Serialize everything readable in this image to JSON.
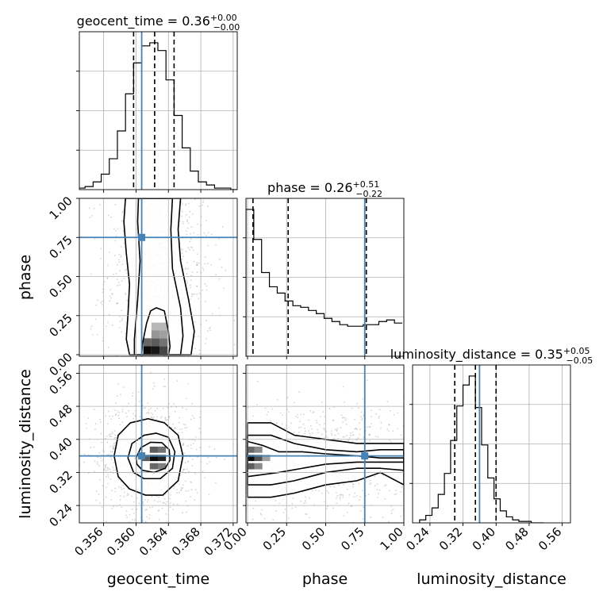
{
  "chart_data": {
    "type": "corner",
    "colors": {
      "truth": "#4682b4",
      "hist": "#000000",
      "grid": "#b0b0b0",
      "points": "#a0a0a0"
    },
    "parameters": [
      {
        "key": "geocent_time",
        "label": "geocent_time",
        "title_main": "geocent_time = 0.36",
        "title_sup": "+0.00",
        "title_sub": "−0.00",
        "range": [
          0.353,
          0.3725
        ],
        "ticks": [
          0.356,
          0.36,
          0.364,
          0.368,
          0.372
        ],
        "tick_labels": [
          "0.356",
          "0.360",
          "0.364",
          "0.368",
          "0.372"
        ],
        "truth": 0.3607,
        "quantiles": [
          0.3597,
          0.3623,
          0.3647
        ],
        "hist_x0": 0.3527,
        "hist_dx": 0.001,
        "hist": [
          0.01,
          0.02,
          0.05,
          0.1,
          0.2,
          0.38,
          0.62,
          0.82,
          0.93,
          0.95,
          0.9,
          0.71,
          0.48,
          0.27,
          0.12,
          0.05,
          0.03,
          0.01,
          0.01,
          0.0
        ]
      },
      {
        "key": "phase",
        "label": "phase",
        "title_main": "phase = 0.26",
        "title_sup": "+0.51",
        "title_sub": "−0.22",
        "range": [
          -0.01,
          1.0
        ],
        "ticks": [
          0.0,
          0.25,
          0.5,
          0.75,
          1.0
        ],
        "tick_labels": [
          "0.00",
          "0.25",
          "0.50",
          "0.75",
          "1.00"
        ],
        "truth": 0.75,
        "quantiles": [
          0.035,
          0.26,
          0.76
        ],
        "hist_x0": -0.01,
        "hist_dx": 0.05,
        "hist": [
          0.93,
          0.74,
          0.53,
          0.44,
          0.4,
          0.35,
          0.32,
          0.31,
          0.29,
          0.27,
          0.24,
          0.22,
          0.2,
          0.19,
          0.19,
          0.2,
          0.2,
          0.22,
          0.23,
          0.21
        ]
      },
      {
        "key": "luminosity_distance",
        "label": "luminosity_distance",
        "title_main": "luminosity_distance = 0.35",
        "title_sup": "+0.05",
        "title_sub": "−0.05",
        "range": [
          0.198,
          0.58
        ],
        "ticks": [
          0.24,
          0.32,
          0.4,
          0.48,
          0.56
        ],
        "tick_labels": [
          "0.24",
          "0.32",
          "0.40",
          "0.48",
          "0.56"
        ],
        "truth": 0.36,
        "quantiles": [
          0.3,
          0.35,
          0.4
        ],
        "hist_x0": 0.215,
        "hist_dx": 0.015,
        "hist": [
          0.02,
          0.05,
          0.1,
          0.19,
          0.33,
          0.55,
          0.78,
          0.92,
          0.98,
          0.77,
          0.52,
          0.3,
          0.16,
          0.08,
          0.04,
          0.02,
          0.01,
          0.01,
          0.0,
          0.0
        ]
      }
    ],
    "panels_2d": [
      {
        "x": "geocent_time",
        "y": "phase",
        "truth": [
          0.3607,
          0.75
        ],
        "contours": [
          [
            [
              0.3592,
              0.0
            ],
            [
              0.3588,
              0.1
            ],
            [
              0.359,
              0.25
            ],
            [
              0.3592,
              0.45
            ],
            [
              0.3588,
              0.65
            ],
            [
              0.3585,
              0.85
            ],
            [
              0.3587,
              1.0
            ],
            [
              0.3655,
              1.0
            ],
            [
              0.3652,
              0.8
            ],
            [
              0.3655,
              0.6
            ],
            [
              0.3665,
              0.35
            ],
            [
              0.3672,
              0.15
            ],
            [
              0.3668,
              0.0
            ]
          ],
          [
            [
              0.3598,
              0.0
            ],
            [
              0.3598,
              0.1
            ],
            [
              0.3602,
              0.35
            ],
            [
              0.3605,
              0.6
            ],
            [
              0.3602,
              0.85
            ],
            [
              0.3603,
              1.0
            ],
            [
              0.3645,
              1.0
            ],
            [
              0.3643,
              0.8
            ],
            [
              0.3645,
              0.55
            ],
            [
              0.3655,
              0.3
            ],
            [
              0.3658,
              0.12
            ],
            [
              0.3655,
              0.0
            ]
          ],
          [
            [
              0.3607,
              0.0
            ],
            [
              0.3608,
              0.07
            ],
            [
              0.3613,
              0.2
            ],
            [
              0.3618,
              0.28
            ],
            [
              0.3625,
              0.3
            ],
            [
              0.3635,
              0.28
            ],
            [
              0.364,
              0.15
            ],
            [
              0.3642,
              0.05
            ],
            [
              0.364,
              0.0
            ]
          ]
        ],
        "density": [
          {
            "x": 0.3614,
            "y": 0.03,
            "v": 0.95
          },
          {
            "x": 0.3624,
            "y": 0.03,
            "v": 0.9
          },
          {
            "x": 0.3634,
            "y": 0.03,
            "v": 0.7
          },
          {
            "x": 0.3614,
            "y": 0.08,
            "v": 0.55
          },
          {
            "x": 0.3624,
            "y": 0.08,
            "v": 0.6
          },
          {
            "x": 0.3634,
            "y": 0.08,
            "v": 0.5
          },
          {
            "x": 0.3624,
            "y": 0.13,
            "v": 0.35
          },
          {
            "x": 0.3634,
            "y": 0.13,
            "v": 0.3
          },
          {
            "x": 0.3624,
            "y": 0.18,
            "v": 0.2
          },
          {
            "x": 0.3634,
            "y": 0.18,
            "v": 0.2
          }
        ]
      },
      {
        "x": "geocent_time",
        "y": "luminosity_distance",
        "truth": [
          0.3607,
          0.36
        ],
        "contours": [
          [
            [
              0.3573,
              0.36
            ],
            [
              0.3578,
              0.41
            ],
            [
              0.3593,
              0.44
            ],
            [
              0.3615,
              0.45
            ],
            [
              0.3635,
              0.44
            ],
            [
              0.3652,
              0.41
            ],
            [
              0.3658,
              0.36
            ],
            [
              0.3652,
              0.3
            ],
            [
              0.3633,
              0.265
            ],
            [
              0.3612,
              0.265
            ],
            [
              0.3592,
              0.28
            ],
            [
              0.3578,
              0.31
            ]
          ],
          [
            [
              0.359,
              0.355
            ],
            [
              0.3595,
              0.39
            ],
            [
              0.361,
              0.41
            ],
            [
              0.3625,
              0.415
            ],
            [
              0.364,
              0.405
            ],
            [
              0.3648,
              0.37
            ],
            [
              0.3645,
              0.33
            ],
            [
              0.363,
              0.305
            ],
            [
              0.361,
              0.305
            ],
            [
              0.3597,
              0.32
            ]
          ],
          [
            [
              0.36,
              0.355
            ],
            [
              0.3606,
              0.38
            ],
            [
              0.3618,
              0.393
            ],
            [
              0.3632,
              0.392
            ],
            [
              0.3641,
              0.375
            ],
            [
              0.3642,
              0.35
            ],
            [
              0.3636,
              0.33
            ],
            [
              0.3622,
              0.32
            ],
            [
              0.3608,
              0.325
            ],
            [
              0.3601,
              0.34
            ]
          ]
        ],
        "density": [
          {
            "x": 0.3622,
            "y": 0.355,
            "v": 0.95
          },
          {
            "x": 0.3632,
            "y": 0.355,
            "v": 0.85
          },
          {
            "x": 0.3612,
            "y": 0.355,
            "v": 0.6
          },
          {
            "x": 0.3622,
            "y": 0.375,
            "v": 0.6
          },
          {
            "x": 0.3632,
            "y": 0.375,
            "v": 0.5
          },
          {
            "x": 0.3622,
            "y": 0.335,
            "v": 0.55
          },
          {
            "x": 0.3632,
            "y": 0.335,
            "v": 0.45
          }
        ]
      },
      {
        "x": "phase",
        "y": "luminosity_distance",
        "truth": [
          0.75,
          0.36
        ],
        "contours": [
          [
            [
              0.0,
              0.44
            ],
            [
              0.15,
              0.44
            ],
            [
              0.3,
              0.41
            ],
            [
              0.5,
              0.4
            ],
            [
              0.7,
              0.39
            ],
            [
              0.85,
              0.39
            ],
            [
              1.0,
              0.39
            ],
            [
              1.0,
              0.29
            ],
            [
              0.85,
              0.32
            ],
            [
              0.7,
              0.3
            ],
            [
              0.5,
              0.29
            ],
            [
              0.3,
              0.27
            ],
            [
              0.15,
              0.26
            ],
            [
              0.0,
              0.26
            ]
          ],
          [
            [
              0.0,
              0.41
            ],
            [
              0.15,
              0.41
            ],
            [
              0.3,
              0.39
            ],
            [
              0.5,
              0.375
            ],
            [
              0.7,
              0.37
            ],
            [
              0.85,
              0.375
            ],
            [
              1.0,
              0.375
            ],
            [
              1.0,
              0.325
            ],
            [
              0.85,
              0.33
            ],
            [
              0.7,
              0.33
            ],
            [
              0.5,
              0.32
            ],
            [
              0.3,
              0.3
            ],
            [
              0.15,
              0.29
            ],
            [
              0.0,
              0.29
            ]
          ],
          [
            [
              0.0,
              0.395
            ],
            [
              0.1,
              0.385
            ],
            [
              0.2,
              0.37
            ],
            [
              0.35,
              0.37
            ],
            [
              0.5,
              0.365
            ],
            [
              0.7,
              0.36
            ],
            [
              0.85,
              0.355
            ],
            [
              1.0,
              0.355
            ],
            [
              1.0,
              0.345
            ],
            [
              0.85,
              0.345
            ],
            [
              0.7,
              0.345
            ],
            [
              0.5,
              0.34
            ],
            [
              0.35,
              0.33
            ],
            [
              0.2,
              0.32
            ],
            [
              0.1,
              0.315
            ],
            [
              0.0,
              0.31
            ]
          ]
        ],
        "density": [
          {
            "x": 0.02,
            "y": 0.355,
            "v": 0.95
          },
          {
            "x": 0.07,
            "y": 0.355,
            "v": 0.65
          },
          {
            "x": 0.02,
            "y": 0.335,
            "v": 0.6
          },
          {
            "x": 0.02,
            "y": 0.375,
            "v": 0.55
          },
          {
            "x": 0.07,
            "y": 0.375,
            "v": 0.4
          },
          {
            "x": 0.07,
            "y": 0.335,
            "v": 0.4
          },
          {
            "x": 0.12,
            "y": 0.355,
            "v": 0.3
          }
        ]
      }
    ]
  }
}
